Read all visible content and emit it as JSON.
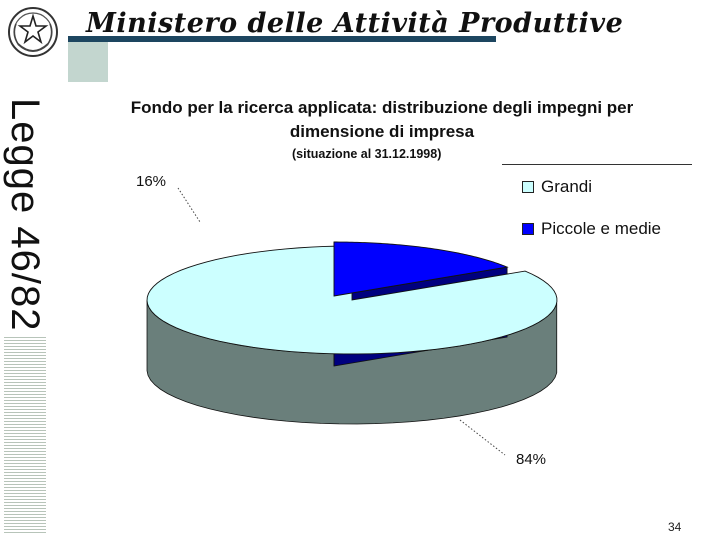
{
  "header": {
    "title": "Ministero delle Attività Produttive",
    "side_title": "Legge 46/82",
    "emblem_icon": "italian-republic-emblem-icon"
  },
  "chart_data": {
    "type": "pie",
    "title": "Fondo per la ricerca applicata: distribuzione degli impegni per dimensione di impresa",
    "subtitle": "(situazione al 31.12.1998)",
    "categories": [
      "Grandi",
      "Piccole e medie"
    ],
    "values": [
      84,
      16
    ],
    "value_labels": [
      "84%",
      "16%"
    ],
    "colors": [
      "#ccffff",
      "#0000ff"
    ],
    "side_colors": [
      "#6a7f7b",
      "#00007f"
    ],
    "legend_position": "top-right",
    "three_d": true,
    "exploded": [
      "Piccole e medie"
    ]
  },
  "footer": {
    "page_number": "34"
  }
}
